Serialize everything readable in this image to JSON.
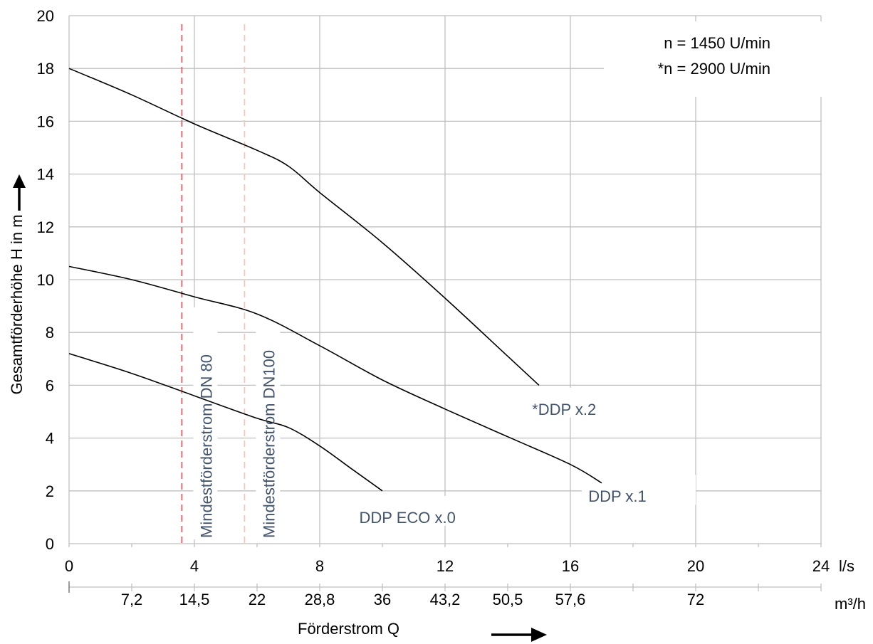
{
  "chart_data": {
    "type": "line",
    "ylabel": "Gesamtförderhöhe H in m",
    "xlabel": "Förderstrom Q",
    "x_unit_primary": "l/s",
    "x_unit_secondary": "m³/h",
    "xlim": [
      0,
      24
    ],
    "ylim": [
      0,
      20
    ],
    "grid": true,
    "x_ticks": [
      0,
      4,
      8,
      12,
      16,
      20,
      24
    ],
    "y_ticks": [
      0,
      2,
      4,
      6,
      8,
      10,
      12,
      14,
      16,
      18,
      20
    ],
    "x_tick_labels": [
      "0",
      "4",
      "8",
      "12",
      "16",
      "20",
      "24"
    ],
    "y_tick_labels": [
      "0",
      "2",
      "4",
      "6",
      "8",
      "10",
      "12",
      "14",
      "16",
      "18",
      "20"
    ],
    "secondary_ticks": [
      {
        "x": 2,
        "label": "7,2"
      },
      {
        "x": 4,
        "label": "14,5"
      },
      {
        "x": 6,
        "label": "22"
      },
      {
        "x": 8,
        "label": "28,8"
      },
      {
        "x": 10,
        "label": "36"
      },
      {
        "x": 12,
        "label": "43,2"
      },
      {
        "x": 14,
        "label": "50,5"
      },
      {
        "x": 16,
        "label": "57,6"
      },
      {
        "x": 20,
        "label": "72"
      }
    ],
    "secondary_minor_ticks": [
      0,
      2,
      4,
      6,
      8,
      10,
      12,
      14,
      16,
      18,
      20,
      22,
      24
    ],
    "series": [
      {
        "name": "*DDP x.2",
        "color": "#000000",
        "points": [
          [
            0,
            18.0
          ],
          [
            2,
            17.0
          ],
          [
            4,
            15.9
          ],
          [
            6,
            14.9
          ],
          [
            7,
            14.3
          ],
          [
            8,
            13.3
          ],
          [
            10,
            11.4
          ],
          [
            12,
            9.3
          ],
          [
            14,
            7.1
          ],
          [
            15,
            6.0
          ]
        ]
      },
      {
        "name": "DDP x.1",
        "color": "#000000",
        "points": [
          [
            0,
            10.5
          ],
          [
            2,
            10.0
          ],
          [
            4,
            9.35
          ],
          [
            6,
            8.7
          ],
          [
            8,
            7.5
          ],
          [
            10,
            6.2
          ],
          [
            12,
            5.1
          ],
          [
            14,
            4.05
          ],
          [
            16,
            3.0
          ],
          [
            17,
            2.3
          ]
        ]
      },
      {
        "name": "DDP ECO x.0",
        "color": "#000000",
        "points": [
          [
            0,
            7.2
          ],
          [
            2,
            6.45
          ],
          [
            4,
            5.6
          ],
          [
            6,
            4.75
          ],
          [
            7,
            4.4
          ],
          [
            8,
            3.7
          ],
          [
            9,
            2.85
          ],
          [
            10,
            2.0
          ]
        ]
      }
    ],
    "series_labels": [
      {
        "text": "*DDP x.2",
        "x": 15.8,
        "y": 5.1
      },
      {
        "text": "DDP x.1",
        "x": 17.5,
        "y": 1.8
      },
      {
        "text": "DDP ECO x.0",
        "x": 10.8,
        "y": 1.0
      }
    ],
    "vertical_markers": [
      {
        "x": 3.6,
        "label": "Mindestförderstrom DN 80",
        "color": "#e05a5a"
      },
      {
        "x": 5.6,
        "label": "Mindestförderstrom DN100",
        "color": "#f4c7bd"
      }
    ],
    "annotations": [
      "n = 1450 U/min",
      "*n = 2900 U/min"
    ]
  }
}
